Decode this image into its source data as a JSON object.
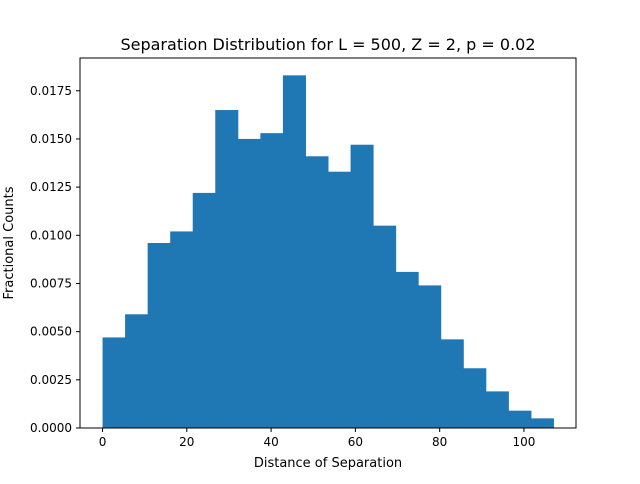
{
  "chart_data": {
    "type": "bar",
    "title": "Separation Distribution for L = 500, Z = 2, p = 0.02",
    "xlabel": "Distance of Separation",
    "ylabel": "Fractional Counts",
    "bin_edges": [
      0,
      5.35,
      10.7,
      16.05,
      21.4,
      26.75,
      32.1,
      37.45,
      42.8,
      48.15,
      53.5,
      58.85,
      64.2,
      69.55,
      74.9,
      80.25,
      85.6,
      90.95,
      96.3,
      101.65,
      107.0
    ],
    "values": [
      0.0047,
      0.0059,
      0.0096,
      0.0102,
      0.0122,
      0.0165,
      0.015,
      0.0153,
      0.0183,
      0.0141,
      0.0133,
      0.0147,
      0.0105,
      0.0081,
      0.0074,
      0.0046,
      0.0031,
      0.0019,
      0.0009,
      0.0005
    ],
    "xlim": [
      -5.35,
      112.35
    ],
    "ylim": [
      0,
      0.0192
    ],
    "xticks": [
      0,
      20,
      40,
      60,
      80,
      100
    ],
    "xtick_labels": [
      "0",
      "20",
      "40",
      "60",
      "80",
      "100"
    ],
    "yticks": [
      0,
      0.0025,
      0.005,
      0.0075,
      0.01,
      0.0125,
      0.015,
      0.0175
    ],
    "ytick_labels": [
      "0.0000",
      "0.0025",
      "0.0050",
      "0.0075",
      "0.0100",
      "0.0125",
      "0.0150",
      "0.0175"
    ],
    "bar_color": "#1f77b4",
    "grid": false,
    "legend": "none"
  }
}
